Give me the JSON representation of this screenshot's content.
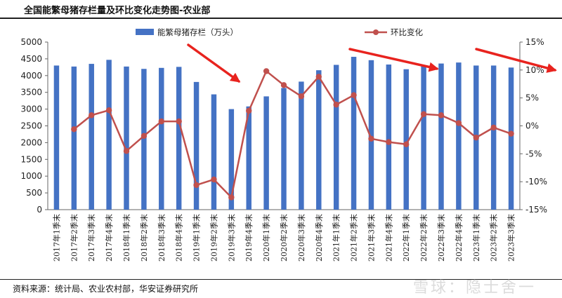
{
  "title": "全国能繁母猪存栏量及环比变化走势图-农业部",
  "source": "资料来源：统计局、农业农村部，华安证券研究所",
  "watermark": "雪球：隐士舍一",
  "chart_data": {
    "type": "bar",
    "categories": [
      "2017年1季末",
      "2017年2季末",
      "2017年3季末",
      "2017年4季末",
      "2018年1季末",
      "2018年2季末",
      "2018年3季末",
      "2018年4季末",
      "2019年1季末",
      "2019年2季末",
      "2019年3季末",
      "2019年4季末",
      "2020年1季末",
      "2020年2季末",
      "2020年3季末",
      "2020年4季末",
      "2021年1季末",
      "2021年2季末",
      "2021年3季末",
      "2021年4季末",
      "2022年1季末",
      "2022年2季末",
      "2022年3季末",
      "2022年4季末",
      "2023年1季末",
      "2023年2季末",
      "2023年3季末"
    ],
    "series": [
      {
        "name": "能繁母猪存栏（万头）",
        "type": "bar",
        "axis": "left",
        "color": "#4472c4",
        "values": [
          4300,
          4270,
          4350,
          4470,
          4270,
          4200,
          4230,
          4260,
          3810,
          3440,
          3000,
          3080,
          3380,
          3630,
          3820,
          4160,
          4320,
          4560,
          4460,
          4330,
          4190,
          4280,
          4360,
          4390,
          4300,
          4300,
          4240
        ]
      },
      {
        "name": "环比变化",
        "type": "line",
        "axis": "right",
        "color": "#c0504d",
        "values": [
          null,
          -0.6,
          1.9,
          2.8,
          -4.5,
          -1.8,
          0.8,
          0.8,
          -10.6,
          -9.6,
          -12.8,
          2.7,
          9.8,
          7.3,
          5.3,
          8.8,
          3.8,
          5.5,
          -2.3,
          -2.9,
          -3.3,
          2.1,
          1.9,
          0.5,
          -2.1,
          -0.3,
          -1.4
        ]
      }
    ],
    "y_left": {
      "lim": [
        0,
        5000
      ],
      "ticks": [
        0,
        500,
        1000,
        1500,
        2000,
        2500,
        3000,
        3500,
        4000,
        4500,
        5000
      ]
    },
    "y_right": {
      "lim": [
        -15,
        15
      ],
      "ticks": [
        -15,
        -10,
        -5,
        0,
        5,
        10,
        15
      ],
      "tick_labels": [
        "-15%",
        "-10%",
        "-5%",
        "0%",
        "5%",
        "10%",
        "15%"
      ]
    },
    "grid": false,
    "legend": "top-center",
    "annotations": [
      {
        "type": "arrow",
        "color": "#e8231e"
      },
      {
        "type": "arrow",
        "color": "#e8231e"
      },
      {
        "type": "arrow",
        "color": "#e8231e"
      }
    ]
  }
}
